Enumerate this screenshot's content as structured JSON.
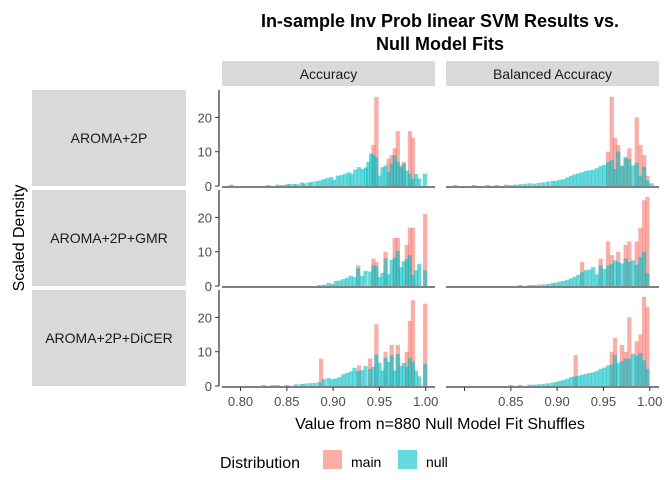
{
  "chart_data": {
    "type": "bar",
    "title": "In-sample Inv Prob linear SVM Results vs. Null Model Fits",
    "title_lines": [
      "In-sample Inv Prob linear SVM Results vs.",
      "Null Model Fits"
    ],
    "xlabel": "Value from n=880 Null Model Fit Shuffles",
    "ylabel": "Scaled Density",
    "legend": {
      "title": "Distribution",
      "position": "bottom",
      "entries": [
        {
          "name": "main",
          "color": "#F8766D"
        },
        {
          "name": "null",
          "color": "#00BFC4"
        }
      ]
    },
    "columns": [
      "Accuracy",
      "Balanced Accuracy"
    ],
    "rows": [
      "AROMA+2P",
      "AROMA+2P+GMR",
      "AROMA+2P+DiCER"
    ],
    "xlim": [
      0.78,
      1.01
    ],
    "ylim": [
      0,
      28
    ],
    "x_ticks": [
      0.8,
      0.85,
      0.9,
      0.95,
      1.0
    ],
    "x_tick_labels": [
      "0.80",
      "0.85",
      "0.90",
      "0.95",
      "1.00"
    ],
    "y_ticks": [
      0,
      10,
      20
    ],
    "y_tick_labels": [
      "0",
      "10",
      "20"
    ],
    "bin_width": 0.00458,
    "grid": false,
    "panels": [
      {
        "row": "AROMA+2P",
        "col": "Accuracy",
        "main": [
          [
            0.9435,
            12
          ],
          [
            0.9467,
            26
          ],
          [
            0.9599,
            8
          ],
          [
            0.9632,
            9
          ],
          [
            0.9665,
            11
          ],
          [
            0.9698,
            16
          ],
          [
            0.973,
            6
          ],
          [
            0.9763,
            7
          ],
          [
            0.9829,
            16
          ],
          [
            0.9862,
            14
          ]
        ],
        "null": [
          [
            0.79,
            0.4
          ],
          [
            0.83,
            0.3
          ],
          [
            0.84,
            0.4
          ],
          [
            0.845,
            0.3
          ],
          [
            0.85,
            0.5
          ],
          [
            0.853,
            0.6
          ],
          [
            0.858,
            0.6
          ],
          [
            0.861,
            0.5
          ],
          [
            0.866,
            1.0
          ],
          [
            0.869,
            0.8
          ],
          [
            0.874,
            1.0
          ],
          [
            0.877,
            1.2
          ],
          [
            0.882,
            1.4
          ],
          [
            0.886,
            1.6
          ],
          [
            0.89,
            2.0
          ],
          [
            0.894,
            2.3
          ],
          [
            0.898,
            2.6
          ],
          [
            0.901,
            1.8
          ],
          [
            0.905,
            3.0
          ],
          [
            0.909,
            3.2
          ],
          [
            0.913,
            3.6
          ],
          [
            0.917,
            4.0
          ],
          [
            0.92,
            3.5
          ],
          [
            0.924,
            4.8
          ],
          [
            0.928,
            5.5
          ],
          [
            0.932,
            5.0
          ],
          [
            0.9355,
            5.4
          ],
          [
            0.938,
            7.0
          ],
          [
            0.941,
            9.5
          ],
          [
            0.9435,
            9.0
          ],
          [
            0.9467,
            8.4
          ],
          [
            0.9501,
            3.0
          ],
          [
            0.9534,
            5.5
          ],
          [
            0.9566,
            6.0
          ],
          [
            0.9599,
            4.0
          ],
          [
            0.9632,
            6.5
          ],
          [
            0.9665,
            9.0
          ],
          [
            0.9698,
            7.0
          ],
          [
            0.973,
            5.5
          ],
          [
            0.9763,
            6.5
          ],
          [
            0.9796,
            4.5
          ],
          [
            0.9829,
            3.5
          ],
          [
            0.9862,
            2.0
          ],
          [
            0.9895,
            3.5
          ],
          [
            0.993,
            2.2
          ],
          [
            0.999,
            3.6
          ]
        ]
      },
      {
        "row": "AROMA+2P",
        "col": "Balanced Accuracy",
        "main": [
          [
            0.955,
            10
          ],
          [
            0.959,
            26
          ],
          [
            0.9625,
            14
          ],
          [
            0.966,
            12
          ],
          [
            0.97,
            6
          ],
          [
            0.974,
            8
          ],
          [
            0.978,
            11
          ],
          [
            0.986,
            20
          ],
          [
            0.99,
            12
          ],
          [
            0.994,
            9
          ],
          [
            0.9975,
            3
          ]
        ],
        "null": [
          [
            0.79,
            0.3
          ],
          [
            0.81,
            0.3
          ],
          [
            0.825,
            0.3
          ],
          [
            0.835,
            0.3
          ],
          [
            0.845,
            0.4
          ],
          [
            0.85,
            0.3
          ],
          [
            0.855,
            0.4
          ],
          [
            0.86,
            0.5
          ],
          [
            0.865,
            0.6
          ],
          [
            0.87,
            0.8
          ],
          [
            0.875,
            0.7
          ],
          [
            0.88,
            0.9
          ],
          [
            0.885,
            1.1
          ],
          [
            0.89,
            1.3
          ],
          [
            0.895,
            1.5
          ],
          [
            0.899,
            1.5
          ],
          [
            0.903,
            1.8
          ],
          [
            0.907,
            2.0
          ],
          [
            0.911,
            2.5
          ],
          [
            0.915,
            3.0
          ],
          [
            0.919,
            3.4
          ],
          [
            0.923,
            3.7
          ],
          [
            0.927,
            4.0
          ],
          [
            0.931,
            4.4
          ],
          [
            0.935,
            4.6
          ],
          [
            0.939,
            4.7
          ],
          [
            0.943,
            5.2
          ],
          [
            0.947,
            5.8
          ],
          [
            0.951,
            6.2
          ],
          [
            0.955,
            7.0
          ],
          [
            0.959,
            7.5
          ],
          [
            0.9625,
            5.0
          ],
          [
            0.966,
            10.0
          ],
          [
            0.97,
            5.8
          ],
          [
            0.974,
            8.5
          ],
          [
            0.978,
            7.8
          ],
          [
            0.982,
            6.0
          ],
          [
            0.986,
            6.8
          ],
          [
            0.99,
            3.0
          ],
          [
            0.994,
            5.6
          ],
          [
            0.9975,
            1.6
          ],
          [
            1.002,
            0.8
          ]
        ]
      },
      {
        "row": "AROMA+2P+GMR",
        "col": "Accuracy",
        "main": [
          [
            0.927,
            6
          ],
          [
            0.9435,
            8
          ],
          [
            0.9467,
            7
          ],
          [
            0.9566,
            10
          ],
          [
            0.9665,
            14
          ],
          [
            0.9698,
            14
          ],
          [
            0.9796,
            12
          ],
          [
            0.9829,
            17
          ],
          [
            0.9862,
            17
          ],
          [
            0.9994,
            21
          ]
        ],
        "null": [
          [
            0.885,
            0.3
          ],
          [
            0.89,
            0.4
          ],
          [
            0.895,
            0.9
          ],
          [
            0.899,
            0.6
          ],
          [
            0.903,
            1.5
          ],
          [
            0.907,
            1.6
          ],
          [
            0.911,
            2.0
          ],
          [
            0.915,
            2.4
          ],
          [
            0.919,
            3.0
          ],
          [
            0.923,
            2.6
          ],
          [
            0.927,
            5.2
          ],
          [
            0.931,
            3.0
          ],
          [
            0.935,
            4.4
          ],
          [
            0.94,
            4.2
          ],
          [
            0.9435,
            6.0
          ],
          [
            0.9467,
            5.8
          ],
          [
            0.9501,
            2.6
          ],
          [
            0.9534,
            3.8
          ],
          [
            0.9566,
            8.0
          ],
          [
            0.9599,
            3.5
          ],
          [
            0.9632,
            7.6
          ],
          [
            0.9665,
            8.2
          ],
          [
            0.9698,
            10.3
          ],
          [
            0.973,
            5.5
          ],
          [
            0.9763,
            7.2
          ],
          [
            0.9796,
            7.8
          ],
          [
            0.9829,
            9.0
          ],
          [
            0.9862,
            3.2
          ],
          [
            0.9895,
            4.6
          ],
          [
            0.993,
            6.5
          ],
          [
            0.9994,
            4.6
          ]
        ]
      },
      {
        "row": "AROMA+2P+GMR",
        "col": "Balanced Accuracy",
        "main": [
          [
            0.927,
            7
          ],
          [
            0.947,
            8
          ],
          [
            0.955,
            13
          ],
          [
            0.959,
            9
          ],
          [
            0.966,
            10
          ],
          [
            0.974,
            12
          ],
          [
            0.978,
            13
          ],
          [
            0.986,
            13
          ],
          [
            0.99,
            17
          ],
          [
            0.994,
            25
          ],
          [
            0.9975,
            26
          ]
        ],
        "null": [
          [
            0.86,
            0.3
          ],
          [
            0.87,
            0.3
          ],
          [
            0.875,
            0.3
          ],
          [
            0.88,
            0.4
          ],
          [
            0.885,
            0.5
          ],
          [
            0.89,
            0.6
          ],
          [
            0.895,
            0.9
          ],
          [
            0.899,
            1.0
          ],
          [
            0.903,
            1.3
          ],
          [
            0.907,
            1.5
          ],
          [
            0.911,
            1.8
          ],
          [
            0.915,
            2.2
          ],
          [
            0.919,
            2.7
          ],
          [
            0.923,
            3.3
          ],
          [
            0.927,
            4.0
          ],
          [
            0.931,
            4.6
          ],
          [
            0.935,
            4.8
          ],
          [
            0.939,
            5.5
          ],
          [
            0.943,
            3.4
          ],
          [
            0.947,
            6.0
          ],
          [
            0.951,
            5.0
          ],
          [
            0.955,
            6.0
          ],
          [
            0.959,
            6.4
          ],
          [
            0.9625,
            7.5
          ],
          [
            0.966,
            7.0
          ],
          [
            0.97,
            6.6
          ],
          [
            0.974,
            8.0
          ],
          [
            0.978,
            7.0
          ],
          [
            0.982,
            7.5
          ],
          [
            0.986,
            6.2
          ],
          [
            0.99,
            8.5
          ],
          [
            0.994,
            10.0
          ],
          [
            0.9975,
            3.8
          ]
        ]
      },
      {
        "row": "AROMA+2P+DiCER",
        "col": "Accuracy",
        "main": [
          [
            0.887,
            8
          ],
          [
            0.928,
            6
          ],
          [
            0.94,
            8
          ],
          [
            0.9467,
            18
          ],
          [
            0.9566,
            10
          ],
          [
            0.9632,
            12
          ],
          [
            0.9698,
            12
          ],
          [
            0.9796,
            10
          ],
          [
            0.9829,
            19
          ],
          [
            0.9862,
            25
          ],
          [
            0.9994,
            24
          ]
        ],
        "null": [
          [
            0.825,
            0.3
          ],
          [
            0.835,
            0.3
          ],
          [
            0.84,
            0.3
          ],
          [
            0.85,
            0.3
          ],
          [
            0.86,
            0.5
          ],
          [
            0.866,
            0.6
          ],
          [
            0.87,
            0.7
          ],
          [
            0.875,
            0.8
          ],
          [
            0.88,
            0.9
          ],
          [
            0.885,
            1.1
          ],
          [
            0.89,
            2.0
          ],
          [
            0.895,
            2.3
          ],
          [
            0.899,
            2.0
          ],
          [
            0.903,
            2.2
          ],
          [
            0.907,
            2.6
          ],
          [
            0.911,
            3.4
          ],
          [
            0.915,
            3.8
          ],
          [
            0.919,
            4.2
          ],
          [
            0.923,
            5.3
          ],
          [
            0.927,
            4.4
          ],
          [
            0.931,
            4.6
          ],
          [
            0.935,
            5.8
          ],
          [
            0.94,
            5.0
          ],
          [
            0.9435,
            5.6
          ],
          [
            0.9467,
            9.2
          ],
          [
            0.9501,
            6.8
          ],
          [
            0.9534,
            4.5
          ],
          [
            0.9566,
            8.2
          ],
          [
            0.9599,
            7.0
          ],
          [
            0.9632,
            9.0
          ],
          [
            0.9665,
            4.5
          ],
          [
            0.9698,
            9.3
          ],
          [
            0.973,
            5.8
          ],
          [
            0.9763,
            6.7
          ],
          [
            0.9796,
            5.6
          ],
          [
            0.9829,
            8.2
          ],
          [
            0.9862,
            7.2
          ],
          [
            0.9895,
            4.5
          ],
          [
            0.993,
            2.8
          ],
          [
            0.9994,
            6.5
          ]
        ]
      },
      {
        "row": "AROMA+2P+DiCER",
        "col": "Balanced Accuracy",
        "main": [
          [
            0.92,
            9
          ],
          [
            0.959,
            10
          ],
          [
            0.9625,
            14
          ],
          [
            0.97,
            12
          ],
          [
            0.974,
            10
          ],
          [
            0.978,
            20
          ],
          [
            0.986,
            13
          ],
          [
            0.99,
            15
          ],
          [
            0.994,
            26
          ],
          [
            0.9975,
            23
          ]
        ],
        "null": [
          [
            0.85,
            0.3
          ],
          [
            0.86,
            0.3
          ],
          [
            0.87,
            0.4
          ],
          [
            0.875,
            0.4
          ],
          [
            0.88,
            0.5
          ],
          [
            0.885,
            0.6
          ],
          [
            0.89,
            0.8
          ],
          [
            0.895,
            1.0
          ],
          [
            0.899,
            1.2
          ],
          [
            0.903,
            1.5
          ],
          [
            0.907,
            1.8
          ],
          [
            0.911,
            2.1
          ],
          [
            0.915,
            2.6
          ],
          [
            0.919,
            2.8
          ],
          [
            0.923,
            3.0
          ],
          [
            0.927,
            3.3
          ],
          [
            0.931,
            3.5
          ],
          [
            0.935,
            3.8
          ],
          [
            0.939,
            4.0
          ],
          [
            0.943,
            4.4
          ],
          [
            0.947,
            5.0
          ],
          [
            0.951,
            5.4
          ],
          [
            0.955,
            6.0
          ],
          [
            0.959,
            6.3
          ],
          [
            0.9625,
            9.0
          ],
          [
            0.966,
            6.8
          ],
          [
            0.97,
            7.2
          ],
          [
            0.974,
            8.0
          ],
          [
            0.978,
            8.0
          ],
          [
            0.982,
            9.4
          ],
          [
            0.986,
            8.8
          ],
          [
            0.99,
            9.6
          ],
          [
            0.994,
            7.5
          ],
          [
            0.9975,
            5.0
          ]
        ]
      }
    ]
  }
}
